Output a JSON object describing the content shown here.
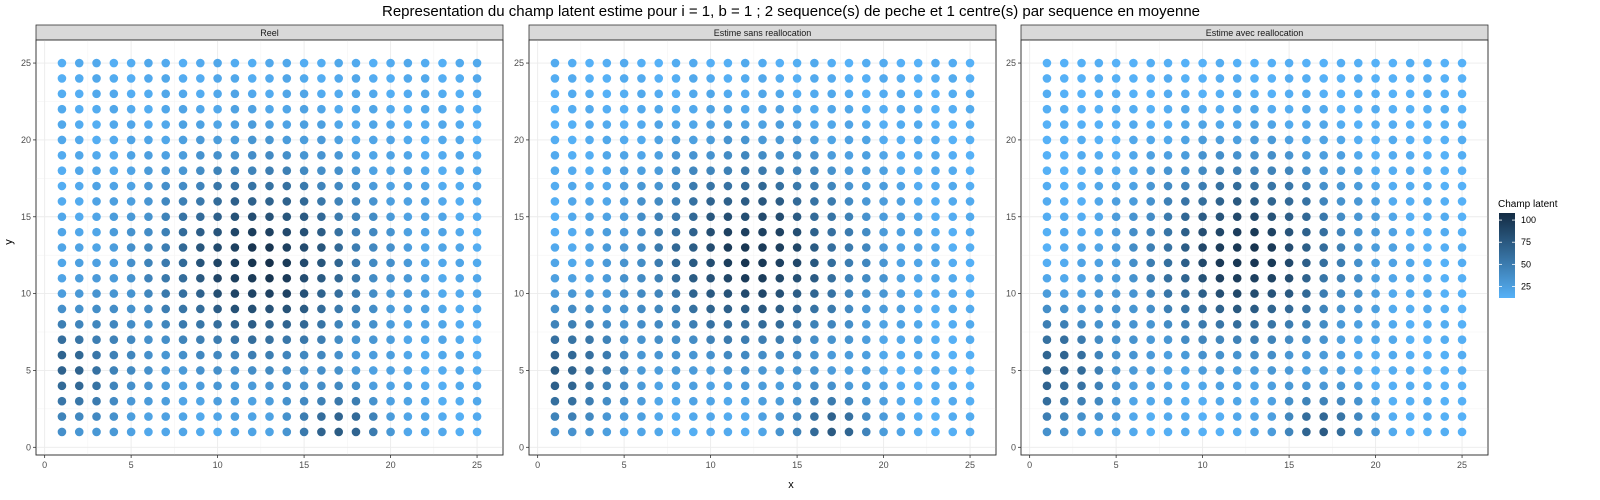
{
  "title": "Representation du champ latent estime pour i = 1, b = 1 ; 2 sequence(s) de peche et 1 centre(s) par sequence en moyenne",
  "xlabel": "x",
  "ylabel": "y",
  "legend": {
    "title": "Champ latent",
    "breaks": [
      25,
      50,
      75,
      100
    ],
    "range": [
      12,
      108
    ],
    "color_low": "#56B1F7",
    "color_high": "#132B43"
  },
  "panels": [
    {
      "label": "Reel"
    },
    {
      "label": "Estime sans reallocation"
    },
    {
      "label": "Estime avec reallocation"
    }
  ],
  "chart_data": {
    "type": "scatter",
    "subtype": "faceted colored grid",
    "x": [
      1,
      2,
      3,
      4,
      5,
      6,
      7,
      8,
      9,
      10,
      11,
      12,
      13,
      14,
      15,
      16,
      17,
      18,
      19,
      20,
      21,
      22,
      23,
      24,
      25
    ],
    "y": [
      1,
      2,
      3,
      4,
      5,
      6,
      7,
      8,
      9,
      10,
      11,
      12,
      13,
      14,
      15,
      16,
      17,
      18,
      19,
      20,
      21,
      22,
      23,
      24,
      25
    ],
    "xlim": [
      -0.5,
      26.5
    ],
    "ylim": [
      -0.5,
      26.5
    ],
    "xticks": [
      0,
      5,
      10,
      15,
      20,
      25
    ],
    "yticks": [
      0,
      5,
      10,
      15,
      20,
      25
    ],
    "grid": true,
    "legend_position": "right",
    "value_model": {
      "description": "Approximate latent field values read from the color scale: sum of three Gaussian hotspots over a baseline",
      "Reel": {
        "base": 16,
        "bumps": [
          [
            12.5,
            12,
            86,
            4.2
          ],
          [
            1,
            5,
            52,
            2.8
          ],
          [
            17,
            1,
            58,
            1.8
          ]
        ]
      },
      "Estime sans reallocation": {
        "base": 14,
        "bumps": [
          [
            12.5,
            12.5,
            86,
            4.2
          ],
          [
            1,
            5,
            58,
            2.8
          ],
          [
            17,
            1,
            58,
            1.8
          ]
        ]
      },
      "Estime avec reallocation": {
        "base": 12,
        "bumps": [
          [
            12.5,
            12.5,
            90,
            4.0
          ],
          [
            1,
            5,
            60,
            2.8
          ],
          [
            17,
            1,
            60,
            1.8
          ]
        ]
      }
    }
  }
}
